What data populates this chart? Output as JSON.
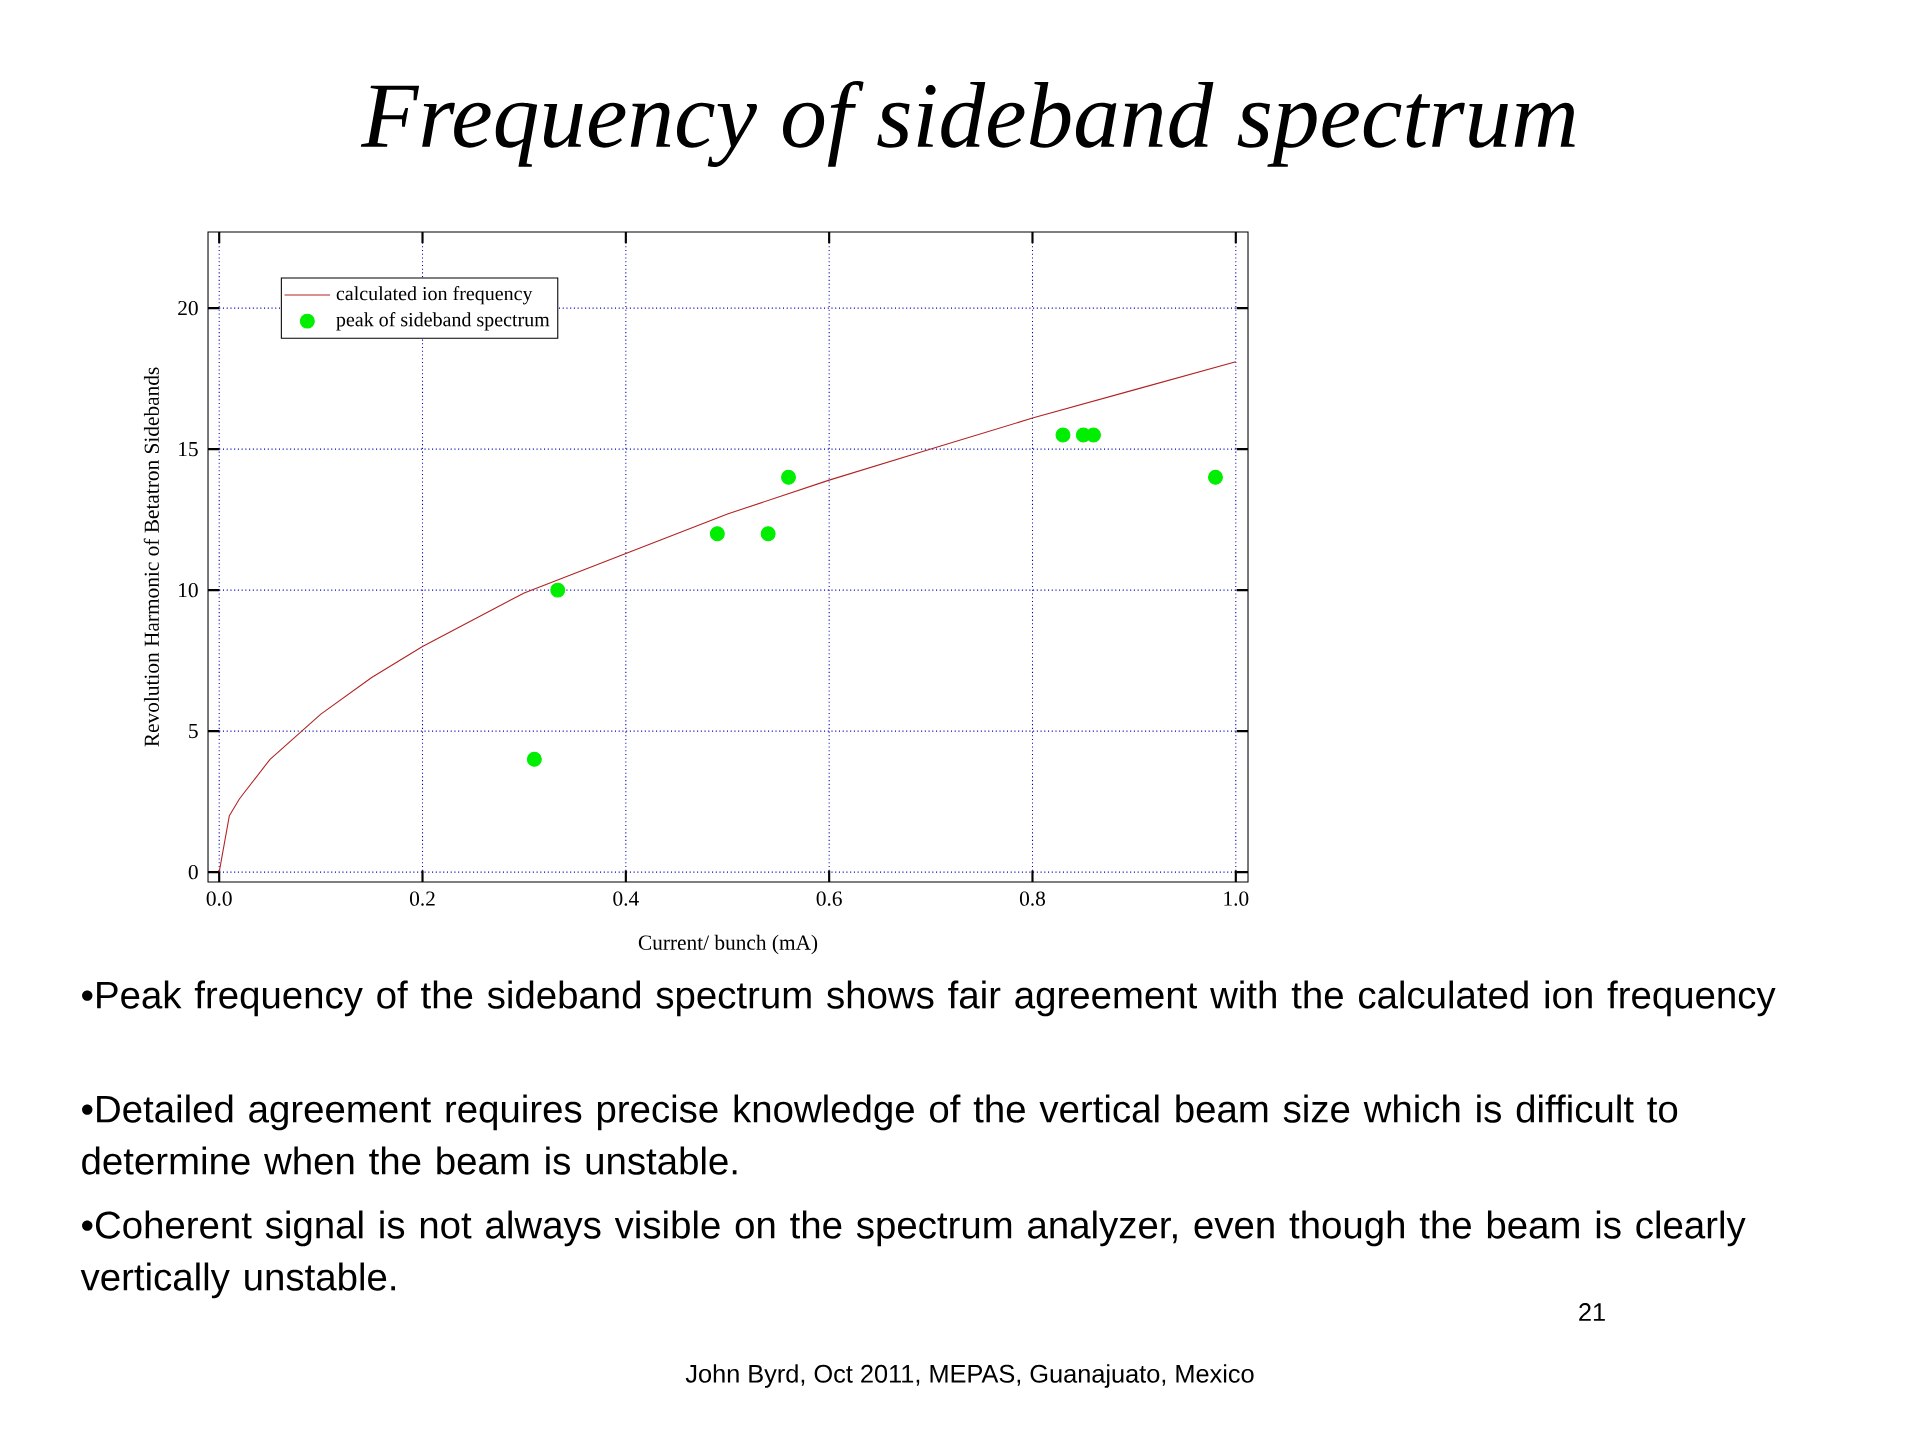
{
  "chart_data": {
    "type": "line",
    "title": "Frequency of sideband spectrum",
    "xlabel": "Current/ bunch (mA)",
    "ylabel": "Revolution Harmonic of Betatron Sidebands",
    "xlim": [
      -0.011,
      1.012
    ],
    "ylim": [
      -0.35,
      22.7
    ],
    "xticks": [
      {
        "value": 0,
        "label": "0.0"
      },
      {
        "value": 0.2,
        "label": "0.2"
      },
      {
        "value": 0.4,
        "label": "0.4"
      },
      {
        "value": 0.6,
        "label": "0.6"
      },
      {
        "value": 0.8,
        "label": "0.8"
      },
      {
        "value": 1.0,
        "label": "1.0"
      }
    ],
    "yticks": [
      0,
      5,
      10,
      15,
      20
    ],
    "grid": true,
    "legend": "top left",
    "series": [
      {
        "name": "calculated ion frequency",
        "marker": "none",
        "line_style": "solid",
        "color": "#b22222",
        "x": [
          0,
          0.01,
          0.02,
          0.05,
          0.1,
          0.15,
          0.2,
          0.3,
          0.4,
          0.5,
          0.6,
          0.7,
          0.8,
          0.9,
          1.0
        ],
        "values": [
          0,
          2,
          2.6,
          4,
          5.6,
          6.9,
          8.0,
          9.9,
          11.3,
          12.7,
          13.9,
          15.0,
          16.1,
          17.1,
          18.1
        ]
      },
      {
        "name": "peak of sideband spectrum",
        "type": "scatter",
        "marker": "circle",
        "color": "#00ee00",
        "x": [
          0.31,
          0.333,
          0.49,
          0.54,
          0.56,
          0.83,
          0.85,
          0.86,
          0.98
        ],
        "values": [
          4,
          10,
          12,
          12,
          14,
          15.5,
          15.5,
          15.5,
          14
        ]
      }
    ],
    "annotations": [
      "•Peak frequency of the sideband spectrum shows fair agreement with the calculated ion frequency",
      "•Detailed agreement requires precise knowledge of the vertical beam size which is difficult to determine when the beam is unstable.",
      "•Coherent signal is not always visible on the spectrum analyzer, even though the beam is clearly vertically unstable.",
      "John Byrd, Oct 2011, MEPAS, Guanajuato, Mexico",
      "21"
    ]
  }
}
